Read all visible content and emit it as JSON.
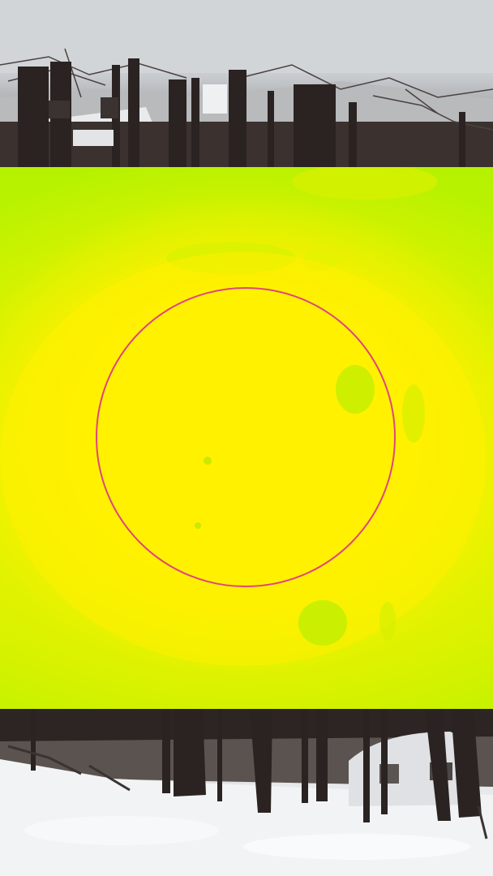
{
  "scene": {
    "thermal_palette": {
      "hot": "#fff000",
      "warm": "#e6f200",
      "cool": "#b6f200"
    },
    "reticle_color": "#e0457a",
    "snow_color": "#f2f3f5",
    "sky_color": "#d4d7da",
    "trunk_color": "#2c2523"
  }
}
